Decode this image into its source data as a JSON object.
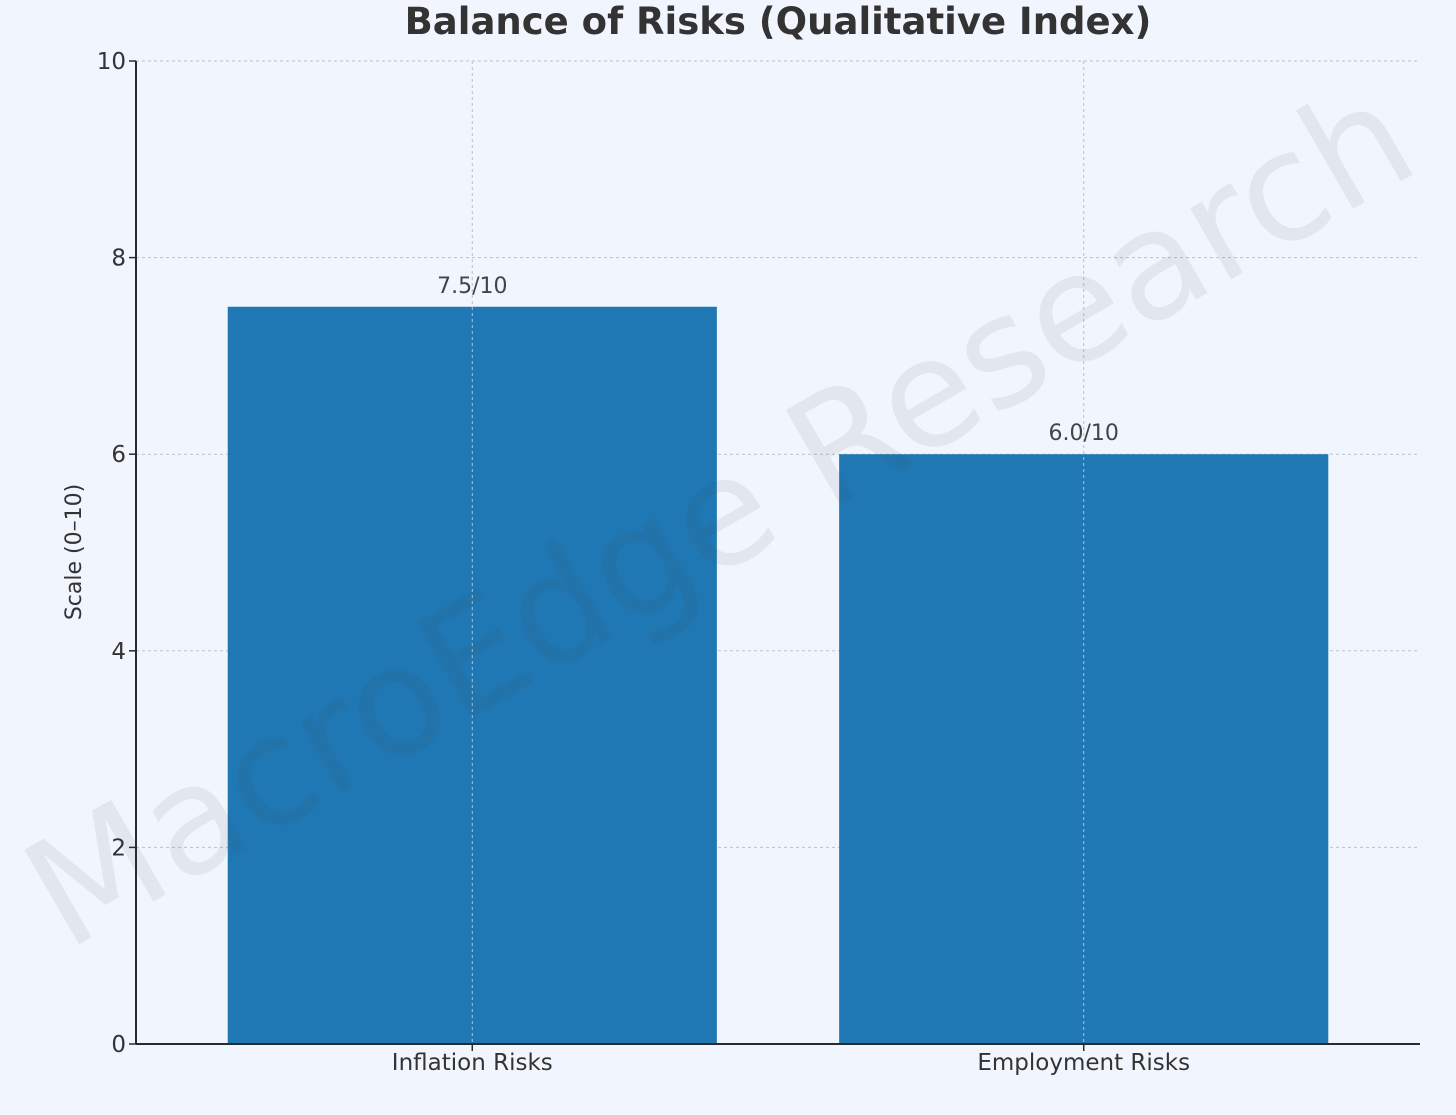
{
  "chart_data": {
    "type": "bar",
    "title": "Balance of Risks (Qualitative Index)",
    "xlabel": "",
    "ylabel": "Scale (0–10)",
    "categories": [
      "Inflation Risks",
      "Employment Risks"
    ],
    "values": [
      7.5,
      6.0
    ],
    "data_labels": [
      "7.5/10",
      "6.0/10"
    ],
    "ylim": [
      0,
      10
    ],
    "yticks": [
      0,
      2,
      4,
      6,
      8,
      10
    ],
    "grid": true,
    "bar_color": "#1f77b4"
  },
  "watermark": "MacroEdge Research"
}
